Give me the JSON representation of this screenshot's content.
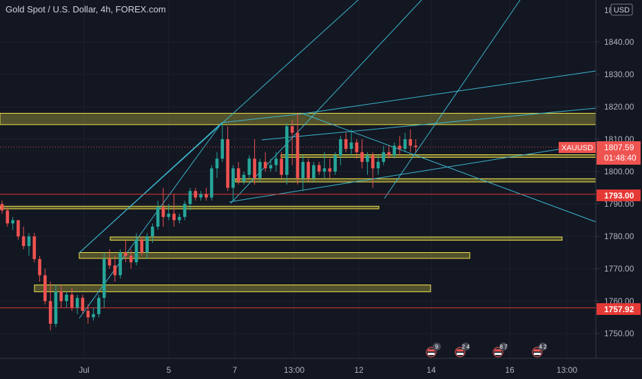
{
  "header": {
    "title": "Gold Spot / U.S. Dollar, 4h, FOREX.com"
  },
  "price_axis": {
    "currency_button": "USD",
    "top_label": "18",
    "ticks": [
      "1840.00",
      "1830.00",
      "1820.00",
      "1810.00",
      "1800.00",
      "1790.00",
      "1780.00",
      "1770.00",
      "1760.00",
      "1750.00"
    ]
  },
  "badges": {
    "symbol": "XAUUSD",
    "last_price": "1807.59",
    "countdown": "01:48:40",
    "level_upper": "1793.00",
    "level_lower": "1757.92"
  },
  "time_axis": {
    "ticks": [
      "Jul",
      "5",
      "7",
      "13:00",
      "12",
      "14",
      "16",
      "13:00"
    ]
  },
  "events": [
    {
      "count": "9"
    },
    {
      "count": "2 4"
    },
    {
      "count": "8 7"
    },
    {
      "count": "4 2"
    }
  ],
  "colors": {
    "background": "#131722",
    "up": "#26a69a",
    "down": "#ef5350",
    "zone": "#f5e84a",
    "trendline": "#3bb8d1",
    "level": "#e53935"
  },
  "chart_data": {
    "type": "candlestick",
    "title": "Gold Spot / U.S. Dollar, 4h, FOREX.com",
    "symbol": "XAUUSD",
    "timeframe": "4h",
    "y_range": [
      1744,
      1851
    ],
    "last_price": 1807.59,
    "candles": [
      [
        1790,
        1791,
        1787,
        1788
      ],
      [
        1788,
        1789,
        1783,
        1784
      ],
      [
        1784,
        1786,
        1782,
        1785
      ],
      [
        1785,
        1785,
        1779,
        1780
      ],
      [
        1780,
        1783,
        1776,
        1777
      ],
      [
        1777,
        1781,
        1774,
        1780
      ],
      [
        1780,
        1781,
        1772,
        1773
      ],
      [
        1773,
        1774,
        1766,
        1768
      ],
      [
        1768,
        1770,
        1759,
        1760
      ],
      [
        1760,
        1766,
        1751,
        1753
      ],
      [
        1753,
        1765,
        1752,
        1763
      ],
      [
        1763,
        1765,
        1758,
        1760
      ],
      [
        1760,
        1763,
        1758,
        1762
      ],
      [
        1762,
        1764,
        1757,
        1758
      ],
      [
        1758,
        1762,
        1756,
        1761
      ],
      [
        1761,
        1762,
        1756,
        1757
      ],
      [
        1757,
        1759,
        1753,
        1755
      ],
      [
        1755,
        1758,
        1754,
        1756
      ],
      [
        1756,
        1762,
        1755,
        1761
      ],
      [
        1761,
        1775,
        1758,
        1773
      ],
      [
        1773,
        1776,
        1770,
        1771
      ],
      [
        1771,
        1774,
        1766,
        1768
      ],
      [
        1768,
        1776,
        1767,
        1775
      ],
      [
        1775,
        1779,
        1772,
        1774
      ],
      [
        1774,
        1776,
        1770,
        1772
      ],
      [
        1772,
        1781,
        1771,
        1779
      ],
      [
        1779,
        1780,
        1774,
        1775
      ],
      [
        1775,
        1781,
        1773,
        1780
      ],
      [
        1780,
        1784,
        1778,
        1783
      ],
      [
        1783,
        1791,
        1782,
        1789
      ],
      [
        1789,
        1795,
        1783,
        1786
      ],
      [
        1786,
        1790,
        1785,
        1787
      ],
      [
        1787,
        1793,
        1783,
        1785
      ],
      [
        1785,
        1787,
        1784,
        1786
      ],
      [
        1786,
        1791,
        1785,
        1790
      ],
      [
        1790,
        1795,
        1788,
        1794
      ],
      [
        1794,
        1795,
        1791,
        1792
      ],
      [
        1792,
        1794,
        1791,
        1793
      ],
      [
        1793,
        1795,
        1791,
        1792
      ],
      [
        1792,
        1802,
        1791,
        1801
      ],
      [
        1801,
        1806,
        1798,
        1804
      ],
      [
        1804,
        1815,
        1803,
        1810
      ],
      [
        1810,
        1814,
        1794,
        1795
      ],
      [
        1795,
        1802,
        1791,
        1801
      ],
      [
        1801,
        1803,
        1796,
        1797
      ],
      [
        1797,
        1800,
        1796,
        1799
      ],
      [
        1799,
        1805,
        1798,
        1804
      ],
      [
        1804,
        1810,
        1796,
        1798
      ],
      [
        1798,
        1804,
        1797,
        1803
      ],
      [
        1803,
        1806,
        1800,
        1801
      ],
      [
        1801,
        1804,
        1800,
        1802
      ],
      [
        1802,
        1806,
        1800,
        1804
      ],
      [
        1804,
        1806,
        1798,
        1799
      ],
      [
        1799,
        1815,
        1796,
        1814
      ],
      [
        1814,
        1816,
        1802,
        1812
      ],
      [
        1812,
        1818,
        1796,
        1798
      ],
      [
        1798,
        1805,
        1794,
        1803
      ],
      [
        1803,
        1804,
        1797,
        1798
      ],
      [
        1798,
        1803,
        1797,
        1802
      ],
      [
        1802,
        1803,
        1799,
        1800
      ],
      [
        1800,
        1806,
        1798,
        1801
      ],
      [
        1801,
        1804,
        1798,
        1800
      ],
      [
        1800,
        1806,
        1799,
        1805
      ],
      [
        1805,
        1811,
        1802,
        1810
      ],
      [
        1810,
        1812,
        1806,
        1807
      ],
      [
        1807,
        1813,
        1805,
        1809
      ],
      [
        1809,
        1810,
        1804,
        1806
      ],
      [
        1806,
        1810,
        1801,
        1803
      ],
      [
        1803,
        1806,
        1799,
        1805
      ],
      [
        1805,
        1806,
        1795,
        1801
      ],
      [
        1801,
        1805,
        1799,
        1803
      ],
      [
        1803,
        1808,
        1802,
        1806
      ],
      [
        1806,
        1808,
        1804,
        1805
      ],
      [
        1805,
        1809,
        1804,
        1808
      ],
      [
        1808,
        1811,
        1805,
        1807
      ],
      [
        1807,
        1812,
        1806,
        1810
      ],
      [
        1810,
        1813,
        1806,
        1808
      ],
      [
        1808,
        1810,
        1806,
        1807.59
      ]
    ],
    "horizontal_levels": [
      1793.0,
      1757.92
    ],
    "zones": [
      {
        "from": 1814.5,
        "to": 1818.0,
        "span": "full"
      },
      {
        "from": 1804.4,
        "to": 1805.2
      },
      {
        "from": 1796.8,
        "to": 1797.8
      },
      {
        "from": 1788.5,
        "to": 1789.3
      },
      {
        "from": 1778.8,
        "to": 1779.8
      },
      {
        "from": 1773.2,
        "to": 1775.0
      },
      {
        "from": 1762.9,
        "to": 1765.0
      }
    ],
    "x_axis_ticks": [
      "Jul",
      "5",
      "7",
      "13:00",
      "12",
      "14",
      "16",
      "13:00"
    ]
  }
}
